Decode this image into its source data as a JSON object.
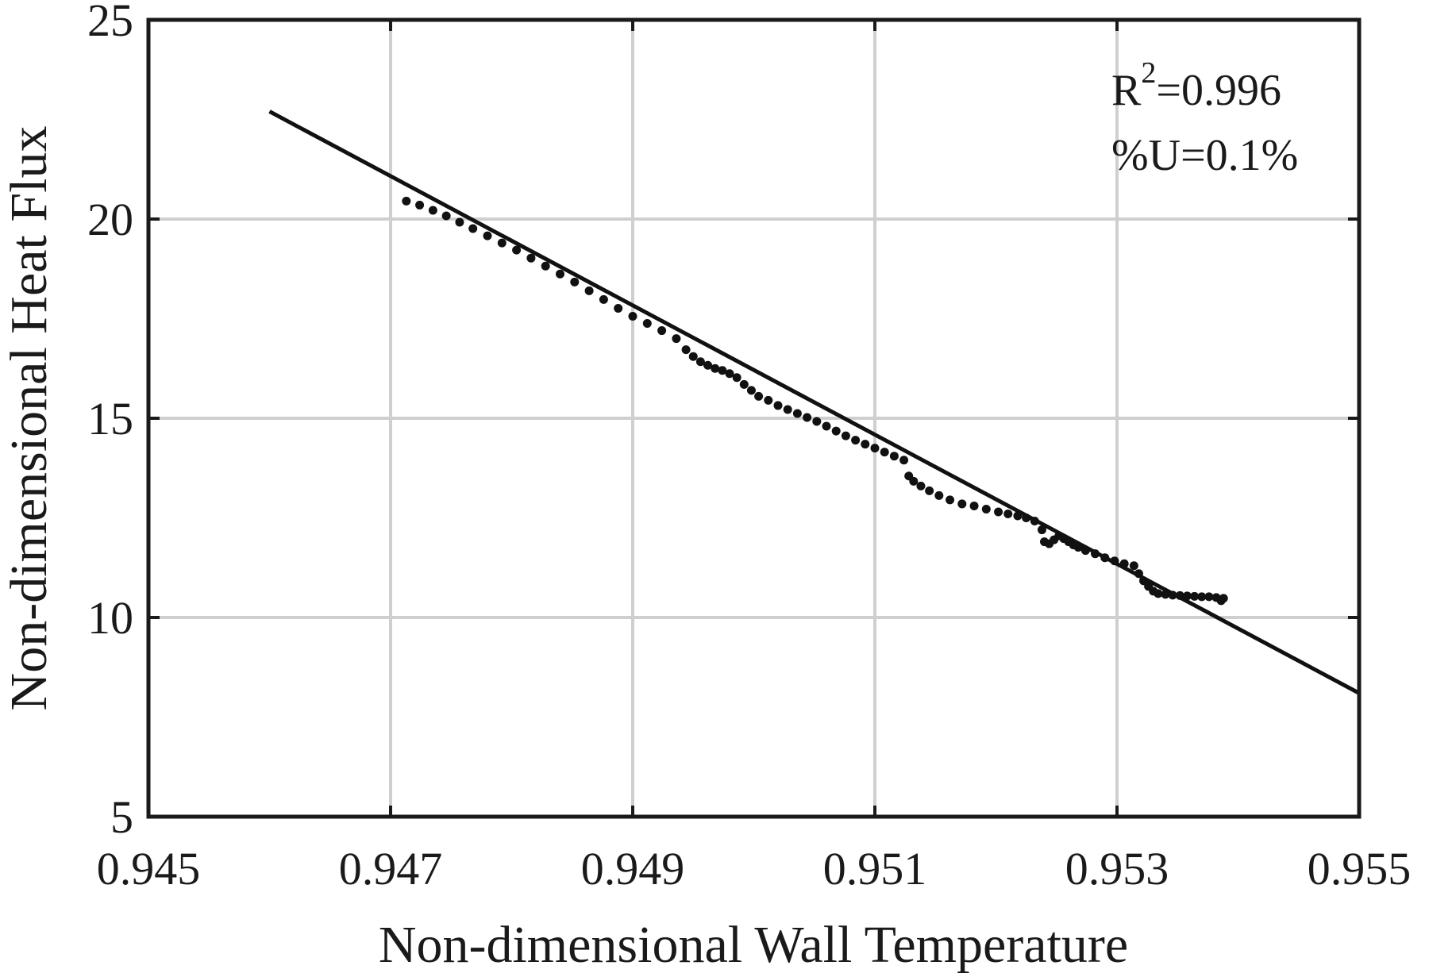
{
  "chart_data": {
    "type": "scatter",
    "title": "",
    "xlabel": "Non-dimensional Wall Temperature",
    "ylabel": "Non-dimensional Heat Flux",
    "xlim": [
      0.945,
      0.955
    ],
    "ylim": [
      5,
      25
    ],
    "x_ticks": [
      "0.945",
      "0.947",
      "0.949",
      "0.951",
      "0.953",
      "0.955"
    ],
    "y_ticks": [
      "5",
      "10",
      "15",
      "20",
      "25"
    ],
    "grid": true,
    "legend": "none",
    "annotations": {
      "r2_base": "R",
      "r2_exp": "2",
      "r2_value": "=0.996",
      "uncertainty": "%U=0.1%"
    },
    "fit_line": {
      "x": [
        0.946,
        0.955
      ],
      "y": [
        22.7,
        8.1
      ]
    },
    "series": [
      {
        "type": "scatter",
        "x": [
          0.94713,
          0.94724,
          0.94735,
          0.94746,
          0.94757,
          0.94768,
          0.9478,
          0.94792,
          0.94804,
          0.94816,
          0.94828,
          0.9484,
          0.94852,
          0.94864,
          0.94876,
          0.94888,
          0.949,
          0.94912,
          0.94924,
          0.94936,
          0.94944,
          0.9495,
          0.94956,
          0.94962,
          0.94968,
          0.94974,
          0.9498,
          0.94986,
          0.94992,
          0.94998,
          0.95004,
          0.95012,
          0.9502,
          0.95028,
          0.95036,
          0.95044,
          0.95052,
          0.9506,
          0.95068,
          0.95076,
          0.95084,
          0.95092,
          0.951,
          0.95108,
          0.95116,
          0.95124,
          0.95128,
          0.95132,
          0.95138,
          0.95145,
          0.95153,
          0.95162,
          0.95172,
          0.95182,
          0.95192,
          0.95202,
          0.9521,
          0.95218,
          0.95225,
          0.95232,
          0.95238,
          0.9524,
          0.95244,
          0.95248,
          0.95252,
          0.95256,
          0.9526,
          0.95264,
          0.95268,
          0.95274,
          0.95282,
          0.9529,
          0.95298,
          0.95306,
          0.95314,
          0.95318,
          0.95322,
          0.95326,
          0.9533,
          0.95334,
          0.9534,
          0.95346,
          0.95352,
          0.95358,
          0.95364,
          0.9537,
          0.95376,
          0.95382,
          0.95386,
          0.95388
        ],
        "y": [
          20.45,
          20.35,
          20.22,
          20.08,
          19.92,
          19.76,
          19.58,
          19.4,
          19.22,
          19.02,
          18.82,
          18.62,
          18.42,
          18.2,
          17.98,
          17.76,
          17.56,
          17.38,
          17.2,
          17.0,
          16.72,
          16.55,
          16.42,
          16.33,
          16.25,
          16.2,
          16.12,
          16.02,
          15.85,
          15.7,
          15.55,
          15.45,
          15.32,
          15.22,
          15.12,
          15.02,
          14.92,
          14.8,
          14.68,
          14.56,
          14.45,
          14.35,
          14.25,
          14.15,
          14.05,
          13.95,
          13.55,
          13.42,
          13.3,
          13.18,
          13.06,
          12.95,
          12.85,
          12.8,
          12.72,
          12.65,
          12.6,
          12.55,
          12.5,
          12.42,
          12.2,
          11.9,
          11.85,
          11.95,
          12.05,
          11.98,
          11.9,
          11.82,
          11.76,
          11.68,
          11.6,
          11.5,
          11.42,
          11.35,
          11.3,
          11.1,
          10.92,
          10.78,
          10.66,
          10.6,
          10.58,
          10.56,
          10.55,
          10.54,
          10.53,
          10.52,
          10.52,
          10.5,
          10.42,
          10.48
        ]
      }
    ]
  }
}
